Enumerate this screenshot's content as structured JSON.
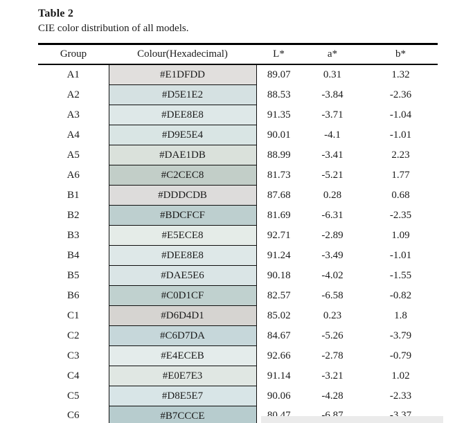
{
  "page": {
    "title": "Table 2",
    "caption": "CIE color distribution of all models."
  },
  "table": {
    "headers": [
      "Group",
      "Colour(Hexadecimal)",
      "L*",
      "a*",
      "b*"
    ],
    "rows": [
      {
        "group": "A1",
        "hex": "#E1DFDD",
        "L": "89.07",
        "a": "0.31",
        "b": "1.32"
      },
      {
        "group": "A2",
        "hex": "#D5E1E2",
        "L": "88.53",
        "a": "-3.84",
        "b": "-2.36"
      },
      {
        "group": "A3",
        "hex": "#DEE8E8",
        "L": "91.35",
        "a": "-3.71",
        "b": "-1.04"
      },
      {
        "group": "A4",
        "hex": "#D9E5E4",
        "L": "90.01",
        "a": "-4.1",
        "b": "-1.01"
      },
      {
        "group": "A5",
        "hex": "#DAE1DB",
        "L": "88.99",
        "a": "-3.41",
        "b": "2.23"
      },
      {
        "group": "A6",
        "hex": "#C2CEC8",
        "L": "81.73",
        "a": "-5.21",
        "b": "1.77"
      },
      {
        "group": "B1",
        "hex": "#DDDCDB",
        "L": "87.68",
        "a": "0.28",
        "b": "0.68"
      },
      {
        "group": "B2",
        "hex": "#BDCFCF",
        "L": "81.69",
        "a": "-6.31",
        "b": "-2.35"
      },
      {
        "group": "B3",
        "hex": "#E5ECE8",
        "L": "92.71",
        "a": "-2.89",
        "b": "1.09"
      },
      {
        "group": "B4",
        "hex": "#DEE8E8",
        "L": "91.24",
        "a": "-3.49",
        "b": "-1.01"
      },
      {
        "group": "B5",
        "hex": "#DAE5E6",
        "L": "90.18",
        "a": "-4.02",
        "b": "-1.55"
      },
      {
        "group": "B6",
        "hex": "#C0D1CF",
        "L": "82.57",
        "a": "-6.58",
        "b": "-0.82"
      },
      {
        "group": "C1",
        "hex": "#D6D4D1",
        "L": "85.02",
        "a": "0.23",
        "b": "1.8"
      },
      {
        "group": "C2",
        "hex": "#C6D7DA",
        "L": "84.67",
        "a": "-5.26",
        "b": "-3.79"
      },
      {
        "group": "C3",
        "hex": "#E4ECEB",
        "L": "92.66",
        "a": "-2.78",
        "b": "-0.79"
      },
      {
        "group": "C4",
        "hex": "#E0E7E3",
        "L": "91.14",
        "a": "-3.21",
        "b": "1.02"
      },
      {
        "group": "C5",
        "hex": "#D8E5E7",
        "L": "90.06",
        "a": "-4.28",
        "b": "-2.33"
      },
      {
        "group": "C6",
        "hex": "#B7CCCE",
        "L": "80.47",
        "a": "-6.87",
        "b": "-3.37"
      }
    ]
  },
  "colors": {
    "table_border": "#000000",
    "text": "#1a1a1a",
    "scan_artifact": "#ebebeb"
  }
}
